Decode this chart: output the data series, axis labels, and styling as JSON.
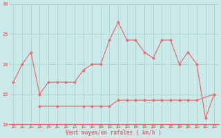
{
  "hours": [
    0,
    1,
    2,
    3,
    4,
    5,
    6,
    7,
    8,
    9,
    10,
    11,
    12,
    13,
    14,
    15,
    16,
    17,
    18,
    19,
    20,
    21,
    22,
    23
  ],
  "wind_gust": [
    17,
    20,
    22,
    15,
    17,
    17,
    17,
    17,
    19,
    20,
    20,
    24,
    27,
    24,
    24,
    22,
    21,
    24,
    24,
    20,
    22,
    20,
    11,
    15
  ],
  "wind_avg": [
    null,
    null,
    null,
    13,
    null,
    13,
    null,
    null,
    13,
    13,
    13,
    13,
    14,
    14,
    14,
    14,
    14,
    14,
    14,
    14,
    14,
    14,
    null,
    15
  ],
  "ylim": [
    10,
    30
  ],
  "xlim_min": -0.5,
  "xlim_max": 23.5,
  "bg_color": "#cce9e9",
  "grid_color": "#aad4d4",
  "line_color": "#e07070",
  "xlabel": "Vent moyen/en rafales ( km/h )",
  "yticks": [
    10,
    15,
    20,
    25,
    30
  ],
  "xticks": [
    0,
    1,
    2,
    3,
    4,
    5,
    6,
    7,
    8,
    9,
    10,
    11,
    12,
    13,
    14,
    15,
    16,
    17,
    18,
    19,
    20,
    21,
    22,
    23
  ]
}
